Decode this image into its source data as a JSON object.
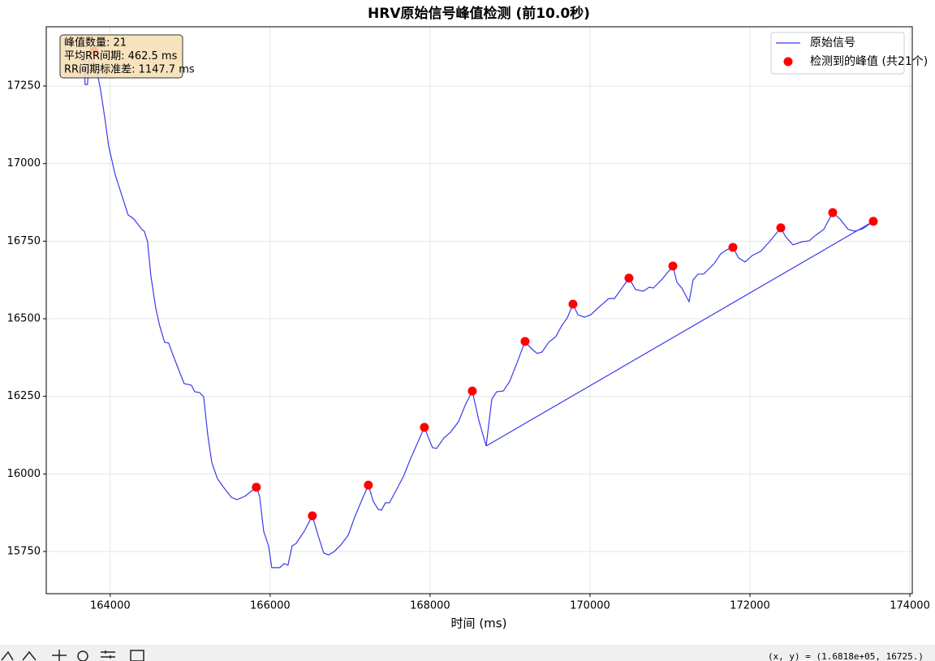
{
  "chart_data": {
    "type": "line",
    "title": "HRV原始信号峰值检测 (前10.0秒)",
    "x_label": "时间 (ms)",
    "annotations": [
      "峰值数量: 21",
      "平均RR间期: 462.5 ms",
      "RR间期标准差: 1147.7 ms"
    ],
    "xlim": [
      163200,
      174030
    ],
    "ylim": [
      15614,
      17441
    ],
    "xticks": [
      164000,
      166000,
      168000,
      170000,
      172000,
      174000
    ],
    "yticks": [
      15750,
      16000,
      16250,
      16500,
      16750,
      17000,
      17250
    ],
    "grid": true,
    "legend": "upper right",
    "series": [
      {
        "name": "原始信号",
        "color": "#3a3aee",
        "mode": "line",
        "x": [
          163675,
          163685,
          163716,
          163736,
          163817,
          163878,
          163939,
          163980,
          164061,
          164142,
          164223,
          164294,
          164396,
          164426,
          164467,
          164508,
          164569,
          164619,
          164680,
          164731,
          164782,
          164853,
          164924,
          165015,
          165056,
          165117,
          165168,
          165218,
          165269,
          165340,
          165411,
          165513,
          165584,
          165685,
          165827,
          165868,
          165919,
          165980,
          166020,
          166122,
          166173,
          166223,
          166274,
          166325,
          166426,
          166528,
          166599,
          166670,
          166731,
          166802,
          166883,
          166975,
          167056,
          167157,
          167228,
          167289,
          167350,
          167391,
          167442,
          167492,
          167563,
          167665,
          167746,
          167848,
          167929,
          167980,
          168030,
          168081,
          168173,
          168254,
          168355,
          168437,
          168528,
          168609,
          168701,
          168772,
          168833,
          168914,
          168995,
          169096,
          169188,
          169269,
          169340,
          169401,
          169482,
          169574,
          169645,
          169716,
          169787,
          169848,
          169929,
          170010,
          170132,
          170234,
          170305,
          170386,
          170487,
          170569,
          170670,
          170741,
          170792,
          170893,
          171036,
          171086,
          171147,
          171239,
          171289,
          171350,
          171421,
          171553,
          171634,
          171706,
          171787,
          171858,
          171939,
          172030,
          172132,
          172244,
          172386,
          172447,
          172538,
          172650,
          172741,
          172822,
          172923,
          173035,
          173127,
          173228,
          173310,
          173411,
          173543,
          168701
        ],
        "values": [
          17365,
          17255,
          17255,
          17344,
          17318,
          17240,
          17135,
          17057,
          16965,
          16900,
          16835,
          16822,
          16788,
          16782,
          16748,
          16639,
          16534,
          16477,
          16424,
          16422,
          16385,
          16338,
          16291,
          16286,
          16265,
          16262,
          16249,
          16129,
          16038,
          15985,
          15959,
          15925,
          15917,
          15928,
          15957,
          15928,
          15815,
          15768,
          15698,
          15698,
          15711,
          15706,
          15768,
          15776,
          15815,
          15865,
          15802,
          15745,
          15739,
          15750,
          15771,
          15802,
          15860,
          15922,
          15964,
          15912,
          15886,
          15883,
          15907,
          15907,
          15941,
          15991,
          16043,
          16103,
          16150,
          16116,
          16085,
          16082,
          16116,
          16134,
          16168,
          16220,
          16267,
          16173,
          16090,
          16241,
          16265,
          16267,
          16298,
          16364,
          16427,
          16403,
          16388,
          16393,
          16424,
          16443,
          16477,
          16503,
          16547,
          16513,
          16505,
          16513,
          16542,
          16565,
          16565,
          16594,
          16631,
          16594,
          16589,
          16602,
          16599,
          16625,
          16670,
          16618,
          16599,
          16555,
          16625,
          16644,
          16644,
          16678,
          16709,
          16722,
          16730,
          16696,
          16683,
          16704,
          16717,
          16748,
          16793,
          16764,
          16738,
          16748,
          16751,
          16769,
          16788,
          16842,
          16821,
          16788,
          16782,
          16790,
          16814,
          16090
        ]
      },
      {
        "name": "检测到的峰值 (共21个)",
        "color": "#ff0000",
        "mode": "markers",
        "x": [
          163797,
          165827,
          166528,
          167228,
          167929,
          168528,
          169188,
          169787,
          170487,
          171036,
          171787,
          172386,
          173035,
          173543
        ],
        "values": [
          17362,
          15957,
          15865,
          15964,
          16150,
          16267,
          16427,
          16547,
          16631,
          16670,
          16730,
          16793,
          16842,
          16814
        ]
      }
    ]
  },
  "toolbar": {
    "coords": "(x, y) = (1.6818e+05, 16725.)"
  }
}
